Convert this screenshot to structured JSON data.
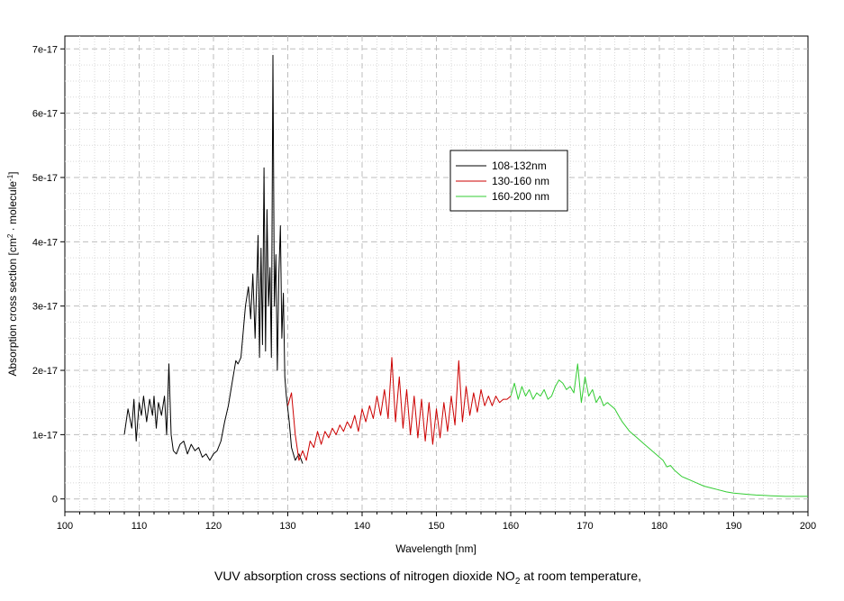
{
  "chart_data": {
    "type": "line",
    "title": "",
    "caption": "VUV absorption cross sections of nitrogen dioxide NO",
    "caption_sub": "2",
    "caption_tail": " at room temperature,",
    "xlabel": "Wavelength [nm]",
    "ylabel_parts": {
      "a": "Absorption cross section [cm",
      "sup1": "2",
      "b": " · molecule",
      "sup2": "-1",
      "c": "]"
    },
    "xlim": [
      100,
      200
    ],
    "ylim": [
      -2e-18,
      7.2e-17
    ],
    "xticks": [
      100,
      110,
      120,
      130,
      140,
      150,
      160,
      170,
      180,
      190,
      200
    ],
    "xtick_labels": [
      "100",
      "110",
      "120",
      "130",
      "140",
      "150",
      "160",
      "170",
      "180",
      "190",
      "200"
    ],
    "yticks": [
      0,
      1e-17,
      2e-17,
      3e-17,
      4e-17,
      5e-17,
      6e-17,
      7e-17
    ],
    "ytick_labels": [
      "0",
      "1e-17",
      "2e-17",
      "3e-17",
      "4e-17",
      "5e-17",
      "6e-17",
      "7e-17"
    ],
    "grid": true,
    "legend_position": "center-right",
    "series": [
      {
        "name": "108-132nm",
        "color": "#000000",
        "x": [
          108.0,
          108.5,
          109.0,
          109.3,
          109.6,
          110.0,
          110.3,
          110.6,
          111.0,
          111.4,
          111.8,
          112.0,
          112.3,
          112.6,
          113.0,
          113.4,
          113.7,
          114.0,
          114.3,
          114.6,
          115.0,
          115.5,
          116.0,
          116.5,
          117.0,
          117.5,
          118.0,
          118.5,
          119.0,
          119.5,
          120.0,
          120.5,
          121.0,
          121.5,
          122.0,
          122.5,
          123.0,
          123.3,
          123.7,
          124.0,
          124.3,
          124.7,
          125.0,
          125.3,
          125.6,
          126.0,
          126.2,
          126.4,
          126.6,
          126.8,
          127.0,
          127.2,
          127.4,
          127.6,
          127.8,
          128.0,
          128.2,
          128.4,
          128.6,
          128.8,
          129.0,
          129.2,
          129.4,
          129.6,
          129.8,
          130.0,
          130.2,
          130.5,
          131.0,
          131.5,
          132.0
        ],
        "y": [
          1e-17,
          1.4e-17,
          1.1e-17,
          1.55e-17,
          9e-18,
          1.5e-17,
          1.3e-17,
          1.6e-17,
          1.2e-17,
          1.55e-17,
          1.3e-17,
          1.6e-17,
          1.1e-17,
          1.5e-17,
          1.3e-17,
          1.6e-17,
          1e-17,
          2.1e-17,
          1e-17,
          7.5e-18,
          7e-18,
          8.5e-18,
          9e-18,
          7e-18,
          8.5e-18,
          7.5e-18,
          8e-18,
          6.5e-18,
          7e-18,
          6e-18,
          7e-18,
          7.5e-18,
          9e-18,
          1.2e-17,
          1.45e-17,
          1.8e-17,
          2.15e-17,
          2.1e-17,
          2.2e-17,
          2.6e-17,
          3e-17,
          3.3e-17,
          2.8e-17,
          3.5e-17,
          2.5e-17,
          4.1e-17,
          2.2e-17,
          3.9e-17,
          2.4e-17,
          5.15e-17,
          2.3e-17,
          4.5e-17,
          3e-17,
          3.6e-17,
          2.2e-17,
          6.9e-17,
          3e-17,
          3.8e-17,
          2e-17,
          3.5e-17,
          4.25e-17,
          2.5e-17,
          3.2e-17,
          1.9e-17,
          1.6e-17,
          1.4e-17,
          1.2e-17,
          8e-18,
          6e-18,
          7e-18,
          5.5e-18
        ]
      },
      {
        "name": "130-160 nm",
        "color": "#cc0000",
        "x": [
          130.0,
          130.5,
          131.0,
          131.5,
          132.0,
          132.5,
          133.0,
          133.5,
          134.0,
          134.5,
          135.0,
          135.5,
          136.0,
          136.5,
          137.0,
          137.5,
          138.0,
          138.5,
          139.0,
          139.5,
          140.0,
          140.5,
          141.0,
          141.5,
          142.0,
          142.5,
          143.0,
          143.5,
          144.0,
          144.5,
          145.0,
          145.5,
          146.0,
          146.5,
          147.0,
          147.5,
          148.0,
          148.5,
          149.0,
          149.5,
          150.0,
          150.5,
          151.0,
          151.5,
          152.0,
          152.5,
          153.0,
          153.5,
          154.0,
          154.5,
          155.0,
          155.5,
          156.0,
          156.5,
          157.0,
          157.5,
          158.0,
          158.5,
          159.0,
          159.5,
          160.0
        ],
        "y": [
          1.45e-17,
          1.65e-17,
          1e-17,
          6e-18,
          7.5e-18,
          6e-18,
          9e-18,
          8e-18,
          1.05e-17,
          8.5e-18,
          1.05e-17,
          9.5e-18,
          1.1e-17,
          1e-17,
          1.15e-17,
          1.05e-17,
          1.2e-17,
          1.1e-17,
          1.3e-17,
          1.05e-17,
          1.4e-17,
          1.2e-17,
          1.45e-17,
          1.25e-17,
          1.6e-17,
          1.3e-17,
          1.7e-17,
          1.25e-17,
          2.2e-17,
          1.2e-17,
          1.9e-17,
          1.1e-17,
          1.7e-17,
          1e-17,
          1.6e-17,
          9.5e-18,
          1.55e-17,
          9e-18,
          1.5e-17,
          8.5e-18,
          1.4e-17,
          9.5e-18,
          1.5e-17,
          1.05e-17,
          1.6e-17,
          1.15e-17,
          2.15e-17,
          1.2e-17,
          1.75e-17,
          1.3e-17,
          1.65e-17,
          1.35e-17,
          1.7e-17,
          1.45e-17,
          1.6e-17,
          1.45e-17,
          1.6e-17,
          1.5e-17,
          1.55e-17,
          1.55e-17,
          1.6e-17
        ]
      },
      {
        "name": "160-200 nm",
        "color": "#33cc33",
        "x": [
          160.0,
          160.5,
          161.0,
          161.5,
          162.0,
          162.5,
          163.0,
          163.5,
          164.0,
          164.5,
          165.0,
          165.5,
          166.0,
          166.5,
          167.0,
          167.5,
          168.0,
          168.5,
          169.0,
          169.5,
          170.0,
          170.5,
          171.0,
          171.5,
          172.0,
          172.5,
          173.0,
          173.5,
          174.0,
          174.5,
          175.0,
          176.0,
          177.0,
          178.0,
          179.0,
          180.0,
          180.5,
          181.0,
          181.5,
          182.0,
          183.0,
          184.0,
          185.0,
          186.0,
          187.0,
          188.0,
          189.0,
          190.0,
          191.0,
          192.0,
          193.0,
          194.0,
          195.0,
          196.0,
          197.0,
          198.0,
          199.0,
          200.0
        ],
        "y": [
          1.6e-17,
          1.8e-17,
          1.55e-17,
          1.75e-17,
          1.6e-17,
          1.7e-17,
          1.55e-17,
          1.65e-17,
          1.6e-17,
          1.7e-17,
          1.55e-17,
          1.6e-17,
          1.75e-17,
          1.85e-17,
          1.8e-17,
          1.7e-17,
          1.75e-17,
          1.65e-17,
          2.1e-17,
          1.5e-17,
          1.9e-17,
          1.6e-17,
          1.7e-17,
          1.5e-17,
          1.6e-17,
          1.45e-17,
          1.5e-17,
          1.45e-17,
          1.4e-17,
          1.3e-17,
          1.2e-17,
          1.05e-17,
          9.5e-18,
          8.5e-18,
          7.5e-18,
          6.5e-18,
          6e-18,
          5e-18,
          5.2e-18,
          4.5e-18,
          3.5e-18,
          3e-18,
          2.5e-18,
          2e-18,
          1.7e-18,
          1.4e-18,
          1.1e-18,
          9e-19,
          8e-19,
          7e-19,
          6e-19,
          5.5e-19,
          5e-19,
          4.5e-19,
          4e-19,
          4e-19,
          4e-19,
          4e-19
        ]
      }
    ]
  }
}
